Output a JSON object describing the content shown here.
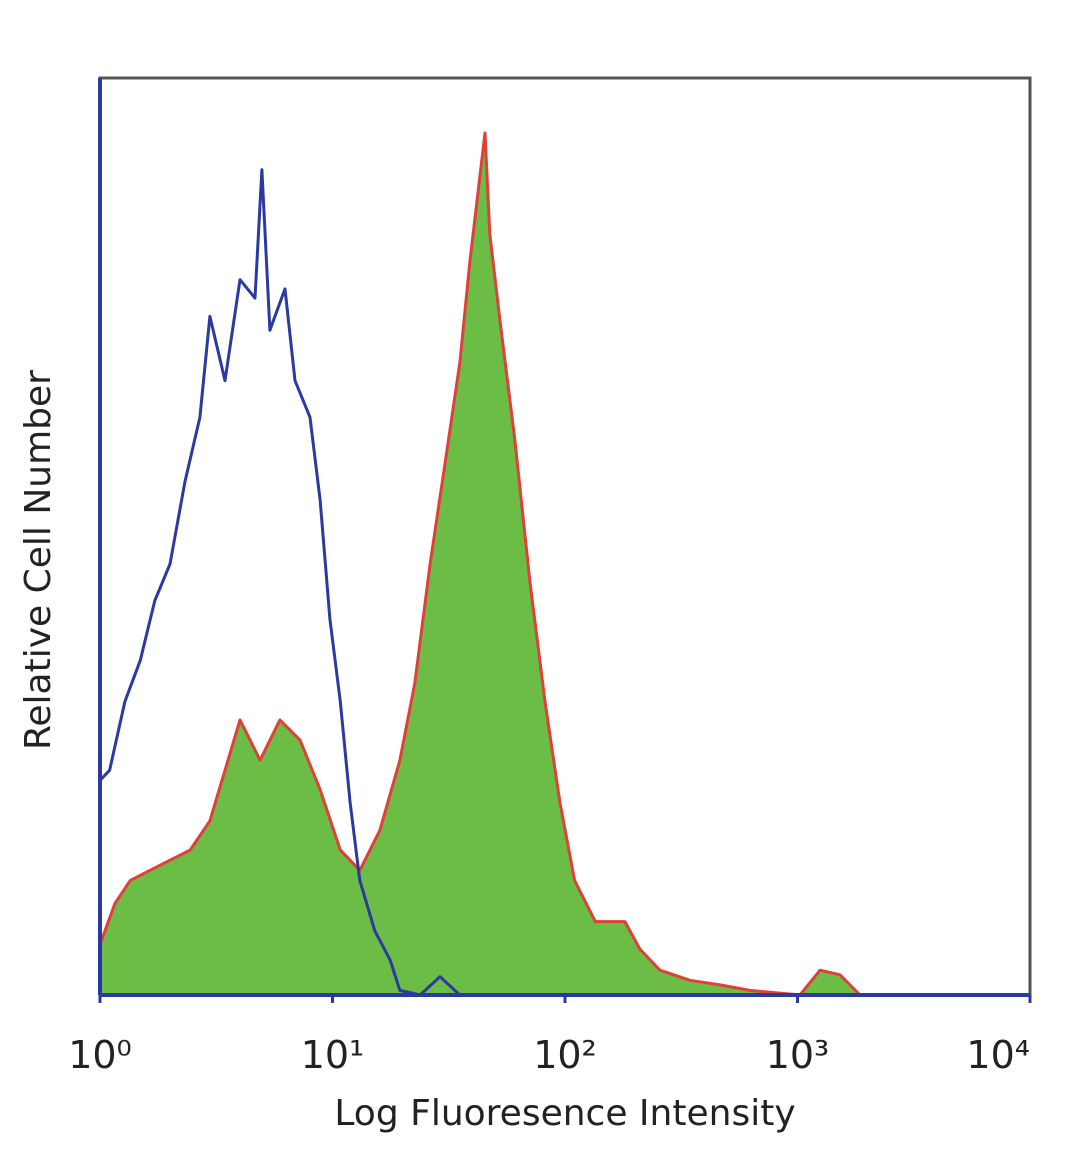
{
  "chart_data": {
    "type": "histogram",
    "xlabel": "Log Fluoresence Intensity",
    "ylabel": "Relative Cell Number",
    "xscale": "log",
    "xlim": [
      1,
      10000
    ],
    "ylim": [
      0,
      100
    ],
    "xticks": [
      {
        "value": 1,
        "label": "10⁰"
      },
      {
        "value": 10,
        "label": "10¹"
      },
      {
        "value": 100,
        "label": "10²"
      },
      {
        "value": 1000,
        "label": "10³"
      },
      {
        "value": 10000,
        "label": "10⁴"
      }
    ],
    "series": [
      {
        "color": "#6cbd45",
        "edge_color": "#e0403a",
        "filled": true,
        "x": [
          1.0,
          1.16,
          1.35,
          1.64,
          2.0,
          2.44,
          2.97,
          3.45,
          4.0,
          4.88,
          5.94,
          7.25,
          8.84,
          10.8,
          13.1,
          16.0,
          19.5,
          22.6,
          26.3,
          30.5,
          35.3,
          39.0,
          45.3,
          47.5,
          52.5,
          60.9,
          70.7,
          82.0,
          95.1,
          110,
          135,
          181,
          210,
          256,
          345,
          464,
          625,
          1025,
          1250,
          1524,
          1857,
          10000
        ],
        "values": [
          5.5,
          10,
          12.5,
          13.6,
          14.7,
          15.8,
          19,
          24.5,
          30,
          25.6,
          30,
          27.8,
          22.4,
          15.8,
          13.6,
          18,
          25.6,
          34,
          47,
          58,
          69,
          80,
          94,
          83,
          73.6,
          60.5,
          45,
          32,
          21,
          12.5,
          8,
          8,
          5,
          2.7,
          1.6,
          1.1,
          0.5,
          0,
          2.7,
          2.2,
          0,
          0
        ]
      },
      {
        "color": "#2b3aa0",
        "filled": false,
        "x": [
          1.0,
          1.1,
          1.28,
          1.49,
          1.72,
          2.0,
          2.32,
          2.69,
          2.97,
          3.45,
          4.0,
          4.64,
          4.97,
          5.38,
          6.25,
          6.9,
          8.0,
          8.84,
          9.75,
          10.8,
          11.9,
          13.1,
          15.2,
          17.7,
          19.5,
          23.8,
          29.0,
          35.3
        ],
        "values": [
          23.4,
          24.5,
          32,
          36.5,
          43,
          47,
          56,
          63,
          74,
          67,
          78,
          76,
          90,
          72.5,
          77,
          67,
          63,
          54,
          41,
          32,
          21,
          12.5,
          7,
          3.8,
          0.5,
          0,
          2,
          0
        ]
      }
    ]
  }
}
